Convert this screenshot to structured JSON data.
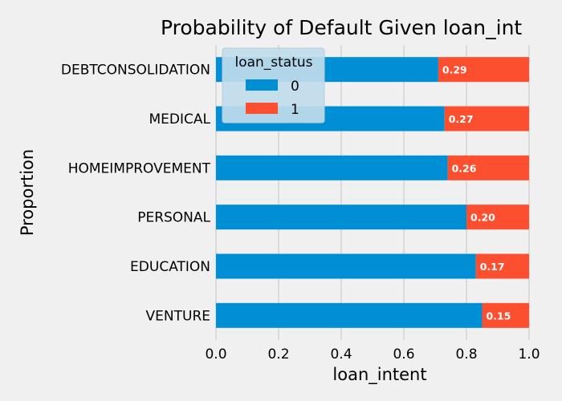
{
  "chart_data": {
    "type": "bar",
    "orientation": "horizontal",
    "stacked": true,
    "title": "Probability of Default Given loan_int",
    "xlabel": "loan_intent",
    "ylabel": "Proportion",
    "xlim": [
      0,
      1
    ],
    "xticks": [
      "0.0",
      "0.2",
      "0.4",
      "0.6",
      "0.8",
      "1.0"
    ],
    "categories": [
      "VENTURE",
      "EDUCATION",
      "PERSONAL",
      "HOMEIMPROVEMENT",
      "MEDICAL",
      "DEBTCONSOLIDATION"
    ],
    "series": [
      {
        "name": "0",
        "color": "#008fd5",
        "values": [
          0.85,
          0.83,
          0.8,
          0.74,
          0.73,
          0.71
        ]
      },
      {
        "name": "1",
        "color": "#fc4f30",
        "values": [
          0.15,
          0.17,
          0.2,
          0.26,
          0.27,
          0.29
        ]
      }
    ],
    "data_labels": [
      "0.15",
      "0.17",
      "0.20",
      "0.26",
      "0.27",
      "0.29"
    ],
    "legend": {
      "title": "loan_status",
      "placement": "top-left"
    },
    "grid": true
  }
}
